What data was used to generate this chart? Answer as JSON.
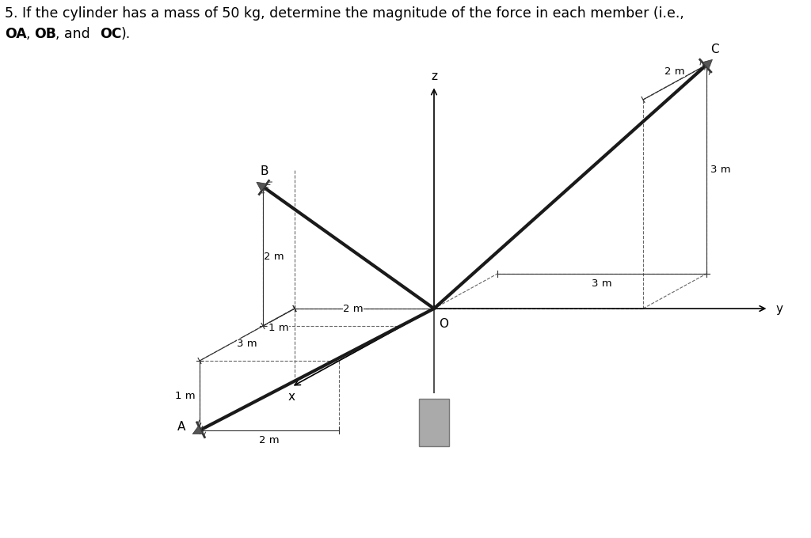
{
  "bg_color": "#ffffff",
  "title_line1": "5. If the cylinder has a mass of 50 kg, determine the magnitude of the force in each member (i.e.,",
  "title_line2_plain": ", and ",
  "title_line2_end": ").",
  "OA_bold": "OA",
  "OB_bold": "OB",
  "OC_bold": "OC",
  "labels": {
    "A": "A",
    "B": "B",
    "C": "C",
    "O": "O",
    "x": "x",
    "y": "y",
    "z": "z"
  },
  "dims": {
    "A_vertical": "1 m",
    "A_horiz_y": "2 m",
    "A_depth_x": "3 m",
    "B_vertical": "2 m",
    "B_horiz_x": "1 m",
    "B_horiz_y": "2 m",
    "C_vertical": "3 m",
    "C_horiz_x": "2 m",
    "C_depth_y": "3 m"
  },
  "members_lw": 2.5,
  "axis_lw": 1.2,
  "dash_lw": 0.8
}
